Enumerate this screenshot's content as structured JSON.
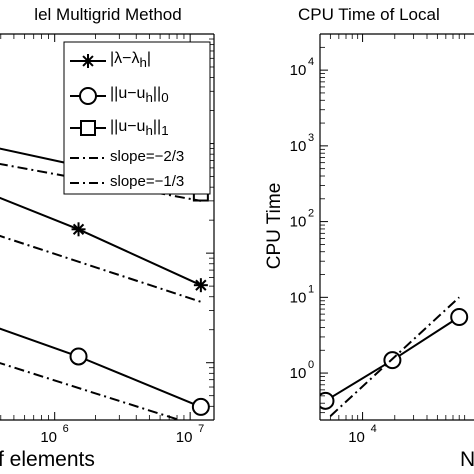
{
  "chart_data": [
    {
      "type": "line",
      "title": "lel Multigrid Method",
      "xlabel": "f elements",
      "ylabel": "",
      "x_scale": "log",
      "y_scale": "log",
      "xlim": [
        200000,
        15000000
      ],
      "ylim": [
        0.0003,
        1
      ],
      "xticks": [
        {
          "value": 1000000,
          "base": "10",
          "exp": "6"
        },
        {
          "value": 10000000,
          "base": "10",
          "exp": "7"
        }
      ],
      "legend": {
        "placement": "top-right",
        "entries": [
          {
            "label_html": "|λ−λ<sub>h</sub>|",
            "marker": "star",
            "style": "solid"
          },
          {
            "label_html": "||u−u<sub>h</sub>||<sub>0</sub>",
            "marker": "circle",
            "style": "solid"
          },
          {
            "label_html": "||u−u<sub>h</sub>||<sub>1</sub>",
            "marker": "square",
            "style": "solid"
          },
          {
            "label_html": "slope=−2/3",
            "marker": "none",
            "style": "dashdot"
          },
          {
            "label_html": "slope=−1/3",
            "marker": "none",
            "style": "dashdot"
          }
        ]
      },
      "series": [
        {
          "marker": "square",
          "style": "solid",
          "points": [
            [
              100000,
              0.13
            ],
            [
              1500000,
              0.063
            ],
            [
              12000000,
              0.035
            ]
          ]
        },
        {
          "marker": "none",
          "style": "dashdot",
          "points": [
            [
              100000,
              0.089
            ],
            [
              12000000,
              0.03
            ]
          ]
        },
        {
          "marker": "star",
          "style": "solid",
          "points": [
            [
              100000,
              0.063
            ],
            [
              1500000,
              0.0165
            ],
            [
              12000000,
              0.0051
            ]
          ]
        },
        {
          "marker": "none",
          "style": "dashdot",
          "points": [
            [
              100000,
              0.025
            ],
            [
              12000000,
              0.0036
            ]
          ]
        },
        {
          "marker": "circle",
          "style": "solid",
          "points": [
            [
              100000,
              0.00373
            ],
            [
              1500000,
              0.00114
            ],
            [
              12000000,
              0.000395
            ]
          ]
        },
        {
          "marker": "none",
          "style": "dashdot",
          "points": [
            [
              100000,
              0.0017
            ],
            [
              12000000,
              0.00026
            ]
          ]
        }
      ]
    },
    {
      "type": "line",
      "title": "CPU Time of Local",
      "xlabel": "N",
      "ylabel": "CPU Time",
      "x_scale": "log",
      "y_scale": "log",
      "xlim": [
        4000,
        110000
      ],
      "ylim": [
        0.24,
        30000
      ],
      "xticks": [
        {
          "value": 10000,
          "base": "10",
          "exp": "4"
        }
      ],
      "yticks": [
        {
          "value": 1,
          "base": "10",
          "exp": "0"
        },
        {
          "value": 10,
          "base": "10",
          "exp": "1"
        },
        {
          "value": 100,
          "base": "10",
          "exp": "2"
        },
        {
          "value": 1000,
          "base": "10",
          "exp": "3"
        },
        {
          "value": 10000,
          "base": "10",
          "exp": "4"
        }
      ],
      "series": [
        {
          "marker": "circle",
          "style": "solid",
          "points": [
            [
              4500,
              0.43
            ],
            [
              19000,
              1.48
            ],
            [
              80000,
              5.5
            ]
          ]
        },
        {
          "marker": "none",
          "style": "dashdot",
          "points": [
            [
              5000,
              0.27
            ],
            [
              80000,
              10
            ]
          ]
        }
      ]
    }
  ]
}
